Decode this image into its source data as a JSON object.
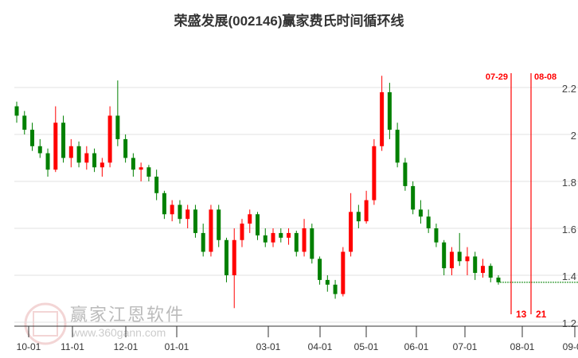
{
  "title": "荣盛发展(002146)赢家费氏时间循环线",
  "watermark": {
    "name": "赢家江恩软件",
    "url": "www.360gann.com",
    "seal": "江恩赢家"
  },
  "colors": {
    "up": "#ff0000",
    "down": "#008000",
    "grid": "#e0e0e0",
    "marker": "#ff0000"
  },
  "chart_data": {
    "type": "candlestick",
    "title": "荣盛发展(002146)赢家费氏时间循环线",
    "x_ticks": [
      "10-01",
      "11-01",
      "12-01",
      "01-01",
      "03-01",
      "04-01",
      "05-01",
      "06-01",
      "07-01",
      "08-01",
      "09-01"
    ],
    "y_ticks": [
      1.2,
      1.4,
      1.6,
      1.8,
      2,
      2.2
    ],
    "ylim": [
      1.2,
      2.25
    ],
    "grid": true,
    "candles_ohlc": [
      [
        2.12,
        2.14,
        2.05,
        2.08
      ],
      [
        2.08,
        2.1,
        2.0,
        2.02
      ],
      [
        2.02,
        2.05,
        1.93,
        1.95
      ],
      [
        1.95,
        1.98,
        1.9,
        1.92
      ],
      [
        1.92,
        1.94,
        1.82,
        1.85
      ],
      [
        1.85,
        2.12,
        1.84,
        2.05
      ],
      [
        2.05,
        2.08,
        1.88,
        1.9
      ],
      [
        1.9,
        1.98,
        1.86,
        1.95
      ],
      [
        1.95,
        1.97,
        1.86,
        1.88
      ],
      [
        1.88,
        1.95,
        1.85,
        1.92
      ],
      [
        1.92,
        1.94,
        1.84,
        1.86
      ],
      [
        1.86,
        1.9,
        1.82,
        1.88
      ],
      [
        1.88,
        2.12,
        1.86,
        2.08
      ],
      [
        2.08,
        2.23,
        1.95,
        1.98
      ],
      [
        1.98,
        2.0,
        1.88,
        1.9
      ],
      [
        1.9,
        1.92,
        1.82,
        1.85
      ],
      [
        1.85,
        1.88,
        1.8,
        1.86
      ],
      [
        1.86,
        1.87,
        1.8,
        1.82
      ],
      [
        1.82,
        1.85,
        1.72,
        1.75
      ],
      [
        1.75,
        1.76,
        1.64,
        1.66
      ],
      [
        1.66,
        1.72,
        1.63,
        1.7
      ],
      [
        1.7,
        1.72,
        1.62,
        1.64
      ],
      [
        1.64,
        1.7,
        1.6,
        1.68
      ],
      [
        1.68,
        1.7,
        1.56,
        1.58
      ],
      [
        1.58,
        1.62,
        1.48,
        1.5
      ],
      [
        1.5,
        1.7,
        1.48,
        1.68
      ],
      [
        1.68,
        1.7,
        1.52,
        1.55
      ],
      [
        1.55,
        1.56,
        1.37,
        1.4
      ],
      [
        1.4,
        1.6,
        1.26,
        1.55
      ],
      [
        1.55,
        1.64,
        1.52,
        1.62
      ],
      [
        1.62,
        1.68,
        1.58,
        1.66
      ],
      [
        1.66,
        1.67,
        1.55,
        1.57
      ],
      [
        1.57,
        1.6,
        1.52,
        1.54
      ],
      [
        1.54,
        1.6,
        1.52,
        1.58
      ],
      [
        1.58,
        1.6,
        1.54,
        1.56
      ],
      [
        1.56,
        1.6,
        1.53,
        1.58
      ],
      [
        1.58,
        1.59,
        1.48,
        1.5
      ],
      [
        1.5,
        1.64,
        1.48,
        1.6
      ],
      [
        1.6,
        1.62,
        1.45,
        1.47
      ],
      [
        1.47,
        1.48,
        1.36,
        1.38
      ],
      [
        1.38,
        1.4,
        1.33,
        1.36
      ],
      [
        1.36,
        1.38,
        1.3,
        1.32
      ],
      [
        1.32,
        1.52,
        1.31,
        1.5
      ],
      [
        1.5,
        1.75,
        1.48,
        1.67
      ],
      [
        1.67,
        1.7,
        1.6,
        1.63
      ],
      [
        1.63,
        1.76,
        1.62,
        1.72
      ],
      [
        1.72,
        1.98,
        1.7,
        1.95
      ],
      [
        1.95,
        2.25,
        1.93,
        2.18
      ],
      [
        2.18,
        2.22,
        1.98,
        2.02
      ],
      [
        2.02,
        2.05,
        1.86,
        1.88
      ],
      [
        1.88,
        1.9,
        1.76,
        1.78
      ],
      [
        1.78,
        1.8,
        1.66,
        1.68
      ],
      [
        1.68,
        1.72,
        1.62,
        1.65
      ],
      [
        1.65,
        1.68,
        1.58,
        1.6
      ],
      [
        1.6,
        1.62,
        1.52,
        1.54
      ],
      [
        1.54,
        1.55,
        1.4,
        1.43
      ],
      [
        1.43,
        1.52,
        1.4,
        1.5
      ],
      [
        1.5,
        1.58,
        1.44,
        1.46
      ],
      [
        1.46,
        1.52,
        1.4,
        1.48
      ],
      [
        1.48,
        1.5,
        1.38,
        1.41
      ],
      [
        1.41,
        1.47,
        1.39,
        1.44
      ],
      [
        1.44,
        1.45,
        1.37,
        1.39
      ],
      [
        1.39,
        1.4,
        1.36,
        1.37
      ]
    ],
    "reference_line": {
      "value": 1.37,
      "style": "dotted",
      "color": "#008000"
    },
    "time_cycle_lines": [
      {
        "date": "07-29",
        "count": "13"
      },
      {
        "date": "08-08",
        "count": "21"
      }
    ]
  }
}
